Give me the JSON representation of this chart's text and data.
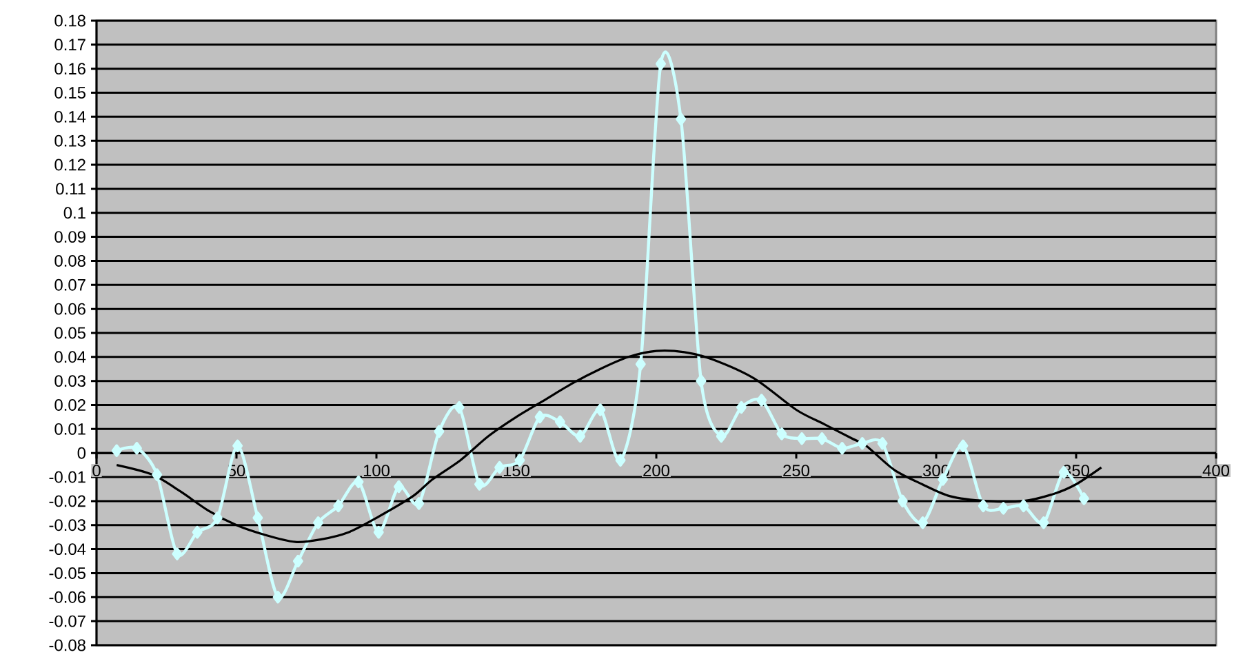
{
  "chart_data": {
    "type": "line",
    "xlim": [
      0,
      400
    ],
    "ylim": [
      -0.08,
      0.18
    ],
    "xticks": [
      0,
      50,
      100,
      150,
      200,
      250,
      300,
      350,
      400
    ],
    "yticks": [
      -0.08,
      -0.07,
      -0.06,
      -0.05,
      -0.04,
      -0.03,
      -0.02,
      -0.01,
      0,
      0.01,
      0.02,
      0.03,
      0.04,
      0.05,
      0.06,
      0.07,
      0.08,
      0.09,
      0.1,
      0.11,
      0.12,
      0.13,
      0.14,
      0.15,
      0.16,
      0.17,
      0.18
    ],
    "grid": "y",
    "legend": false,
    "line_style": "solid",
    "series": [
      {
        "color": "#ccffff",
        "marker": "diamond",
        "x": [
          7.2,
          14.4,
          21.6,
          28.8,
          36,
          43.2,
          50.4,
          57.6,
          64.8,
          72,
          79.2,
          86.4,
          93.6,
          100.8,
          108,
          115.2,
          122.4,
          129.6,
          136.8,
          144,
          151.2,
          158.4,
          165.6,
          172.8,
          180,
          187.2,
          194.4,
          201.6,
          208.8,
          216,
          223.2,
          230.4,
          237.6,
          244.8,
          252,
          259.2,
          266.4,
          273.6,
          280.8,
          288,
          295.2,
          302.4,
          309.6,
          316.8,
          324,
          331.2,
          338.4,
          345.6,
          352.8
        ],
        "values": [
          0.001,
          0.002,
          -0.009,
          -0.042,
          -0.033,
          -0.027,
          0.003,
          -0.027,
          -0.06,
          -0.045,
          -0.029,
          -0.022,
          -0.012,
          -0.033,
          -0.014,
          -0.021,
          0.009,
          0.019,
          -0.013,
          -0.006,
          -0.003,
          0.015,
          0.013,
          0.007,
          0.018,
          -0.003,
          0.037,
          0.162,
          0.139,
          0.03,
          0.007,
          0.019,
          0.022,
          0.008,
          0.006,
          0.006,
          0.002,
          0.004,
          0.004,
          -0.02,
          -0.029,
          -0.011,
          0.003,
          -0.022,
          -0.023,
          -0.022,
          -0.029,
          -0.008,
          -0.019
        ]
      },
      {
        "color": "#000000",
        "marker": "none",
        "x": [
          7.2,
          20,
          30,
          40,
          50,
          60,
          71,
          80,
          90,
          100,
          113,
          120,
          130,
          140,
          150,
          160,
          170,
          180,
          190,
          200,
          210,
          220,
          235,
          250,
          260,
          270,
          275,
          285,
          295,
          305,
          318,
          331,
          342,
          350,
          359
        ],
        "values": [
          -0.005,
          -0.009,
          -0.016,
          -0.024,
          -0.03,
          -0.034,
          -0.037,
          -0.036,
          -0.033,
          -0.027,
          -0.018,
          -0.011,
          -0.003,
          0.007,
          0.015,
          0.022,
          0.029,
          0.035,
          0.04,
          0.0425,
          0.042,
          0.039,
          0.031,
          0.018,
          0.012,
          0.006,
          0.003,
          -0.007,
          -0.013,
          -0.018,
          -0.02,
          -0.02,
          -0.017,
          -0.013,
          -0.006
        ]
      }
    ]
  }
}
